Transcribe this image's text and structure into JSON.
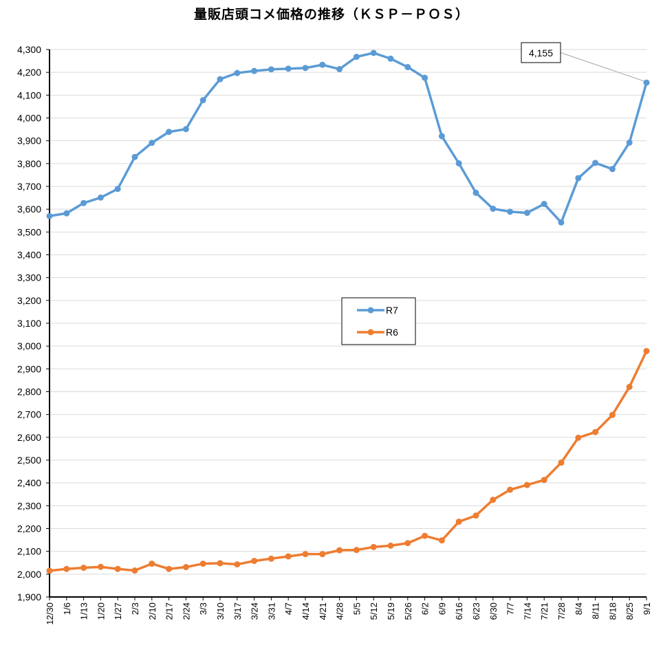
{
  "title": "量販店頭コメ価格の推移（ＫＳＰ－ＰＯＳ）",
  "chart_data": {
    "type": "line",
    "title": "量販店頭コメ価格の推移（ＫＳＰ－ＰＯＳ）",
    "xlabel": "",
    "ylabel": "",
    "ylim": [
      1900,
      4300
    ],
    "ytick_step": 100,
    "grid": true,
    "legend_position": "center",
    "categories": [
      "12/30",
      "1/6",
      "1/13",
      "1/20",
      "1/27",
      "2/3",
      "2/10",
      "2/17",
      "2/24",
      "3/3",
      "3/10",
      "3/17",
      "3/24",
      "3/31",
      "4/7",
      "4/14",
      "4/21",
      "4/28",
      "5/5",
      "5/12",
      "5/19",
      "5/26",
      "6/2",
      "6/9",
      "6/16",
      "6/23",
      "6/30",
      "7/7",
      "7/14",
      "7/21",
      "7/28",
      "8/4",
      "8/11",
      "8/18",
      "8/25",
      "9/1"
    ],
    "series": [
      {
        "name": "R7",
        "color": "#5B9BD5",
        "values": [
          3570,
          3582,
          3627,
          3651,
          3689,
          3829,
          3891,
          3939,
          3951,
          4078,
          4170,
          4197,
          4206,
          4213,
          4216,
          4219,
          4233,
          4214,
          4268,
          4285,
          4260,
          4223,
          4176,
          3920,
          3801,
          3672,
          3602,
          3589,
          3584,
          3623,
          3542,
          3736,
          3803,
          3776,
          3892,
          4155
        ]
      },
      {
        "name": "R6",
        "color": "#ED7D31",
        "values": [
          2015,
          2023,
          2028,
          2032,
          2023,
          2016,
          2046,
          2023,
          2031,
          2046,
          2048,
          2043,
          2058,
          2068,
          2078,
          2088,
          2088,
          2105,
          2106,
          2119,
          2125,
          2136,
          2168,
          2148,
          2230,
          2257,
          2326,
          2370,
          2391,
          2413,
          2489,
          2598,
          2623,
          2698,
          2821,
          2978
        ]
      }
    ],
    "annotations": [
      {
        "series": "R7",
        "category": "9/1",
        "text": "4,155"
      }
    ]
  }
}
